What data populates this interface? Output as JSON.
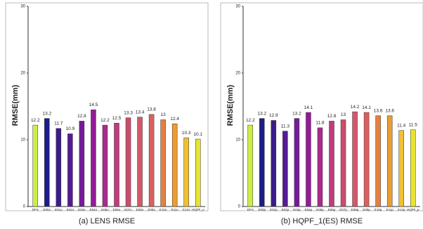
{
  "chart_data": [
    {
      "type": "bar",
      "title": "(a) LENS RMSE",
      "y_label": "RMSE(mm)",
      "categories": [
        "DFS",
        "E00o",
        "E01o",
        "E02o",
        "E03o",
        "E04o",
        "E05o",
        "E06o",
        "E07o",
        "E08o",
        "E09o",
        "E10o",
        "E11o",
        "E12o",
        "HQPF_o"
      ],
      "values": [
        12.2,
        13.2,
        11.7,
        10.9,
        12.8,
        14.5,
        12.2,
        12.5,
        13.3,
        13.4,
        13.8,
        13,
        12.4,
        10.3,
        10.1
      ],
      "colors": [
        "#ccee44",
        "#1c1c8a",
        "#3a1c8c",
        "#561a96",
        "#761a9a",
        "#941a98",
        "#aa2a8c",
        "#c03c7c",
        "#cc4c6c",
        "#d4586a",
        "#dc605e",
        "#e48040",
        "#ec9c30",
        "#f0c030",
        "#e8e430"
      ],
      "ylim": [
        0,
        30
      ],
      "yticks": [
        0,
        10,
        20,
        30
      ],
      "grid": false
    },
    {
      "type": "bar",
      "title": "(b) HQPF_1(ES) RMSE",
      "y_label": "RMSE(mm)",
      "categories": [
        "DFS",
        "E00p",
        "E01p",
        "E02p",
        "E03p",
        "E04p",
        "E05p",
        "E06p",
        "E07p",
        "E08p",
        "E09p",
        "E10p",
        "E11p",
        "E12p",
        "HQPF_p"
      ],
      "values": [
        12.2,
        13.2,
        12.9,
        11.3,
        13.2,
        14.1,
        11.8,
        12.8,
        13,
        14.2,
        14.1,
        13.6,
        13.6,
        11.4,
        11.5
      ],
      "colors": [
        "#ccee44",
        "#1c1c8a",
        "#3a1c8c",
        "#561a96",
        "#761a9a",
        "#941a98",
        "#aa2a8c",
        "#c03c7c",
        "#cc4c6c",
        "#d4586a",
        "#dc605e",
        "#e48040",
        "#ec9c30",
        "#f0c030",
        "#e8e430"
      ],
      "ylim": [
        0,
        30
      ],
      "yticks": [
        0,
        10,
        20,
        30
      ],
      "grid": false
    }
  ]
}
